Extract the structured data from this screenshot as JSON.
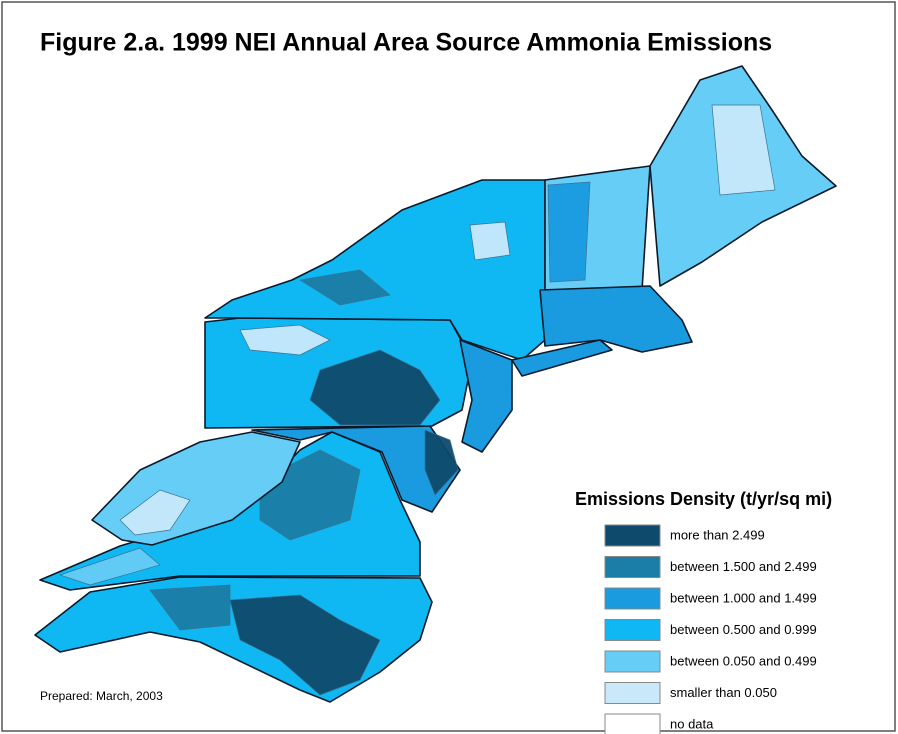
{
  "title": "Figure 2.a. 1999 NEI Annual Area Source Ammonia Emissions",
  "legend": {
    "title": "Emissions Density (t/yr/sq mi)",
    "items": [
      {
        "label": "more than 2.499",
        "color": "#0e4a6c"
      },
      {
        "label": "between 1.500 and 2.499",
        "color": "#1b7ea6"
      },
      {
        "label": "between 1.000 and 1.499",
        "color": "#1a9be0"
      },
      {
        "label": "between 0.500 and 0.999",
        "color": "#0fb8f2"
      },
      {
        "label": "between 0.050 and 0.499",
        "color": "#66cdf6"
      },
      {
        "label": "smaller than 0.050",
        "color": "#c9e9fb"
      },
      {
        "label": "no data",
        "color": "#ffffff"
      }
    ]
  },
  "footnote": "Prepared: March, 2003"
}
